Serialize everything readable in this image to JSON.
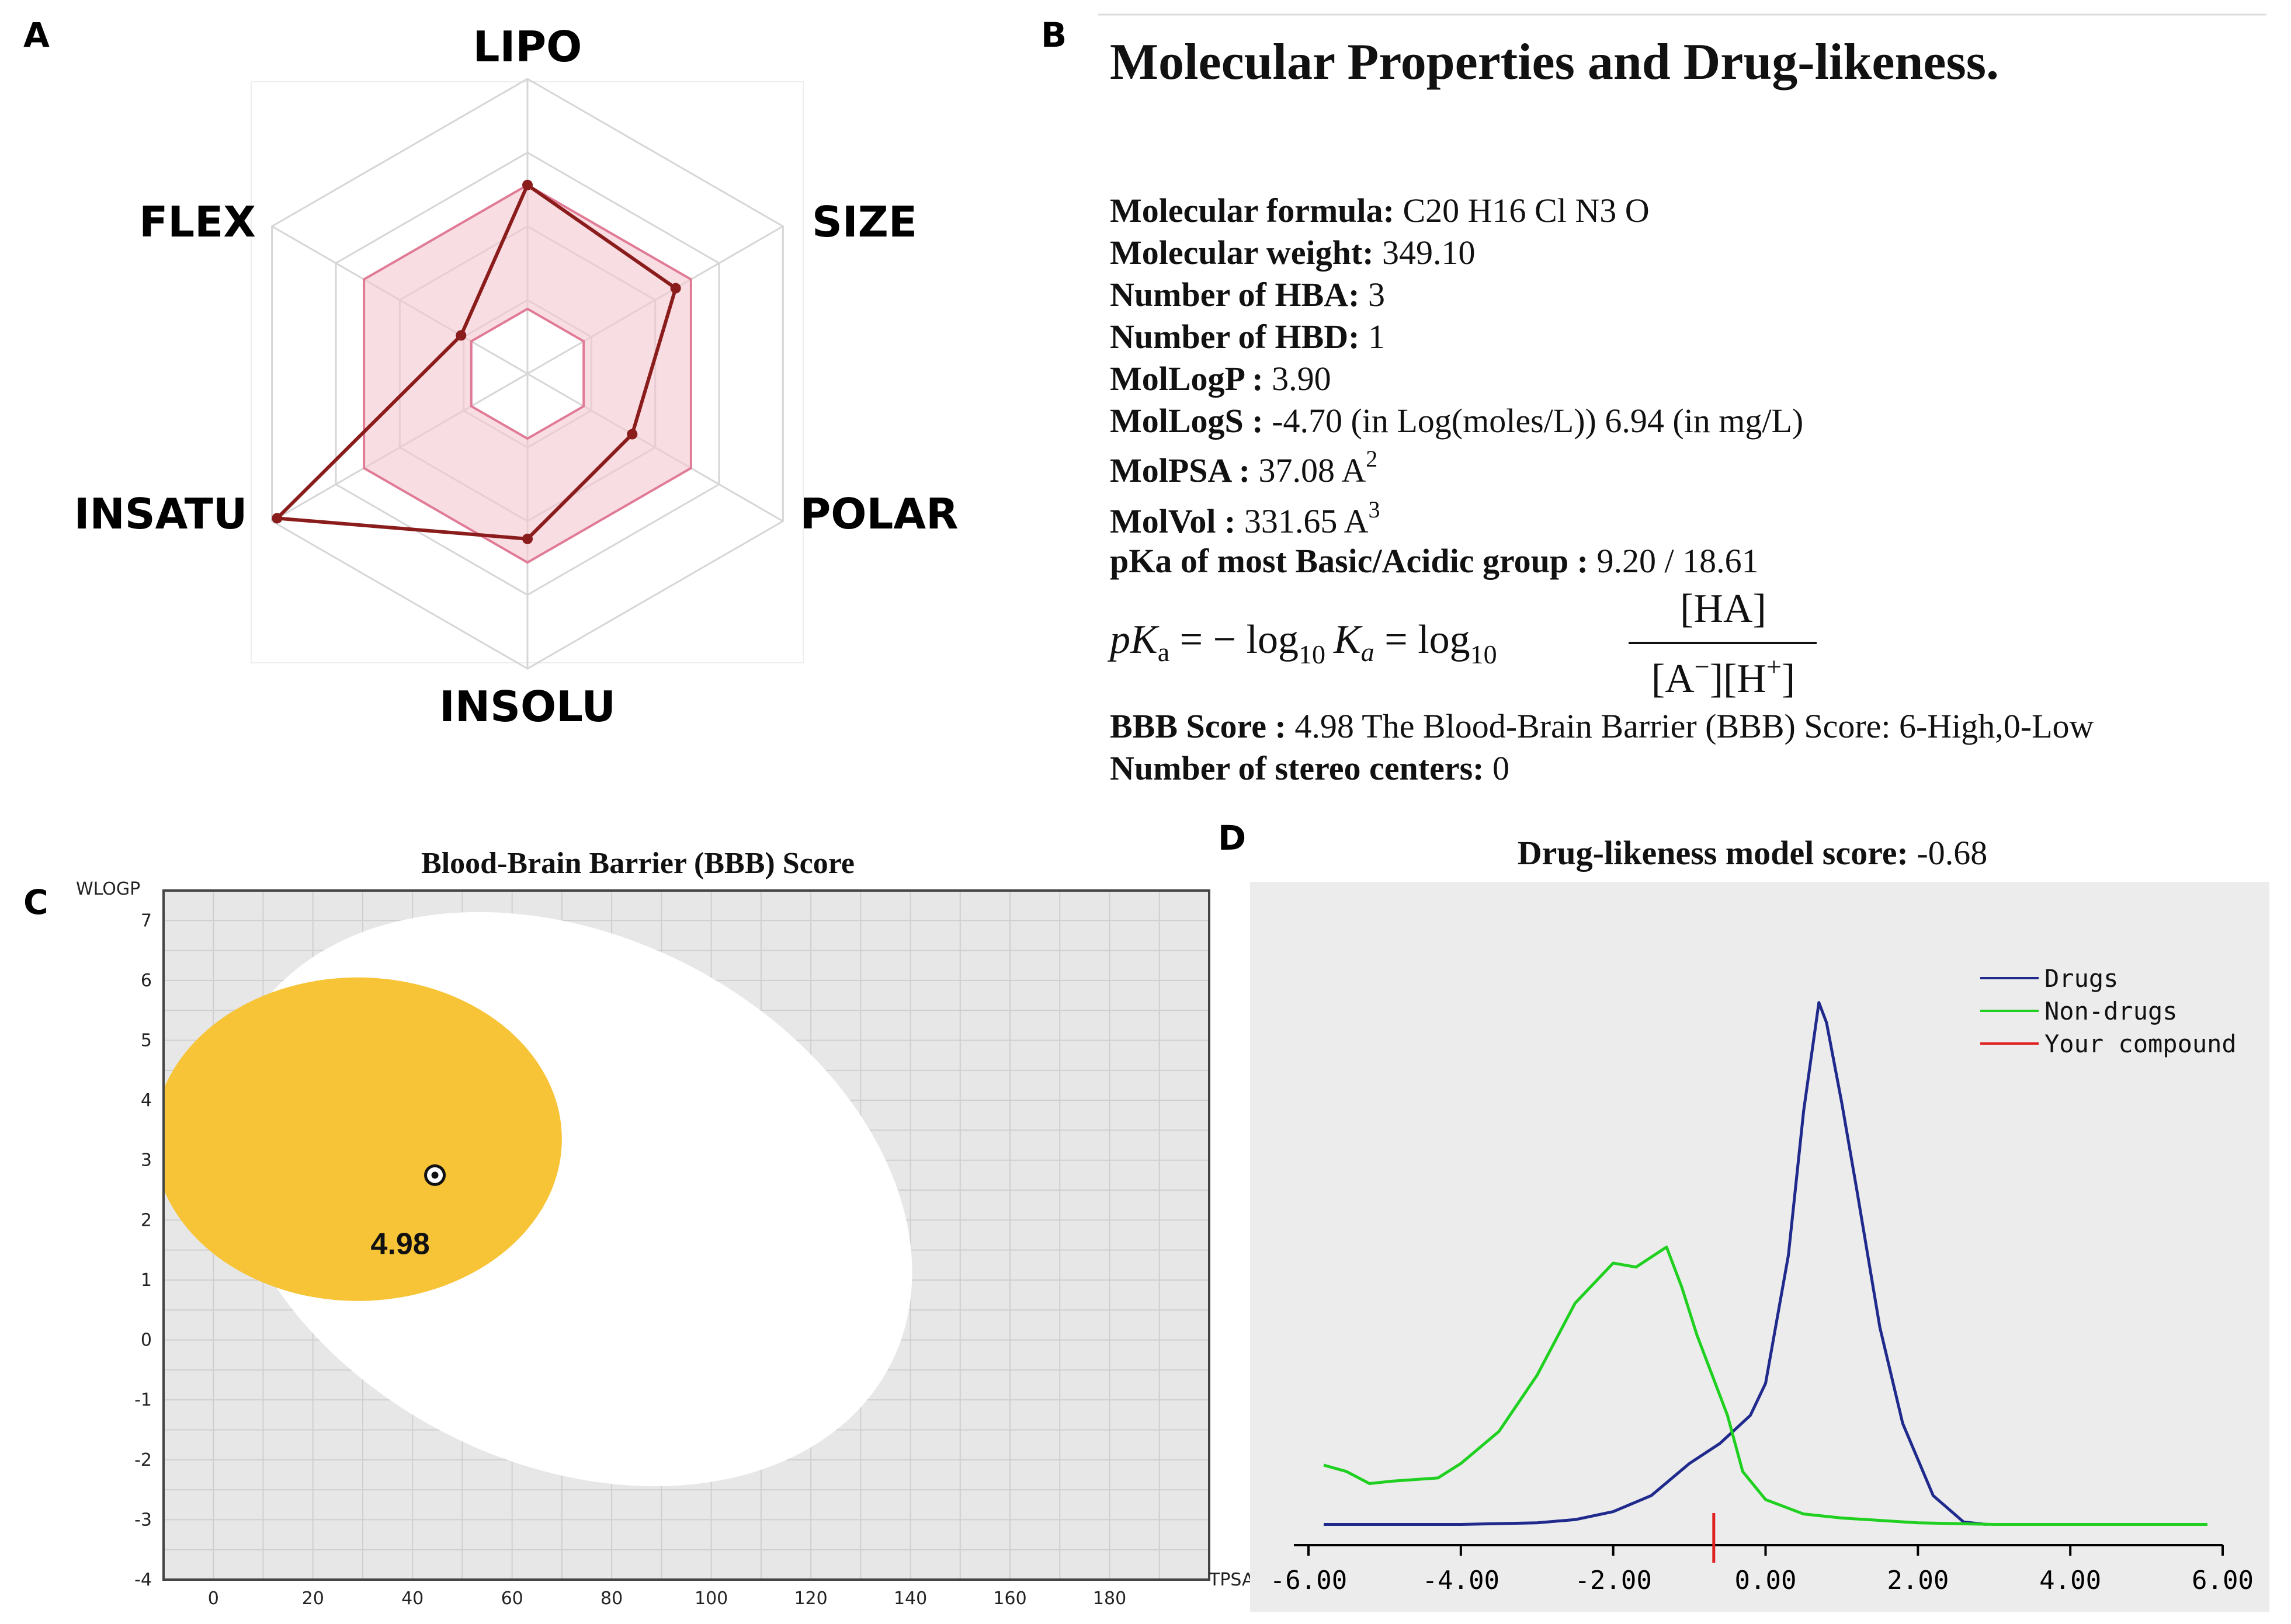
{
  "panels": {
    "a": "A",
    "b": "B",
    "c": "C",
    "d": "D"
  },
  "colors": {
    "radar_line": "#8b1c1c",
    "radar_fill": "#f4c6d0",
    "bbb_yolk": "#f7c437",
    "drugs": "#1f2a8c",
    "non_drugs": "#20d020",
    "compound": "#e02020"
  },
  "radar": {
    "labels": [
      "LIPO",
      "SIZE",
      "POLAR",
      "INSOLU",
      "INSATU",
      "FLEX"
    ],
    "values": [
      0.64,
      0.58,
      0.41,
      0.56,
      0.98,
      0.26
    ],
    "optimal_inner": 0.22,
    "optimal_outer": 0.64,
    "rings": [
      0.25,
      0.5,
      0.75,
      1.0
    ]
  },
  "properties": {
    "title": "Molecular Properties and Drug-likeness.",
    "rows": [
      {
        "key": "Molecular formula:",
        "value": " C20 H16 Cl N3 O"
      },
      {
        "key": "Molecular weight:",
        "value": " 349.10"
      },
      {
        "key": "Number of HBA:",
        "value": " 3"
      },
      {
        "key": "Number of HBD:",
        "value": " 1"
      },
      {
        "key": "MolLogP :",
        "value": " 3.90"
      },
      {
        "key": "MolLogS :",
        "value": " -4.70 (in Log(moles/L)) 6.94 (in mg/L)"
      },
      {
        "key": "MolPSA :",
        "value": " 37.08 A",
        "sup": "2"
      },
      {
        "key": "MolVol :",
        "value": " 331.65 A",
        "sup": "3"
      },
      {
        "key": "pKa of most Basic/Acidic group :",
        "value": " 9.20 / 18.61"
      }
    ],
    "formula": {
      "lhs": "pK",
      "lhs_sub": "a",
      "eq1": " = − log",
      "log_sub": "10",
      "ka": "K",
      "ka_sub": "a",
      "eq2": " = log",
      "numerator": "[HA]",
      "den_a": "[A",
      "den_a_sup": "−",
      "den_mid": "][H",
      "den_h_sup": "+",
      "den_end": "]"
    },
    "rows_after": [
      {
        "key": "BBB Score :",
        "value": " 4.98 The Blood-Brain Barrier (BBB) Score: 6-High,0-Low"
      },
      {
        "key": "Number of stereo centers:",
        "value": " 0"
      }
    ]
  },
  "chart_data": [
    {
      "type": "radar",
      "title": "",
      "axes": [
        "LIPO",
        "SIZE",
        "POLAR",
        "INSOLU",
        "INSATU",
        "FLEX"
      ],
      "values": [
        0.64,
        0.58,
        0.41,
        0.56,
        0.98,
        0.26
      ]
    },
    {
      "type": "scatter",
      "title": "Blood-Brain Barrier (BBB) Score",
      "xlabel": "TPSA",
      "ylabel": "WLOGP",
      "xlim": [
        -10,
        200
      ],
      "ylim": [
        -4,
        7.5
      ],
      "xticks": [
        0,
        20,
        40,
        60,
        80,
        100,
        120,
        140,
        160,
        180
      ],
      "yticks": [
        -4,
        -3,
        -2,
        -1,
        0,
        1,
        2,
        3,
        4,
        5,
        6,
        7
      ],
      "white_ellipse": {
        "center": [
          71,
          2.35
        ],
        "rx": 73,
        "ry": 4.4
      },
      "yolk_ellipse": {
        "center": [
          29,
          3.35
        ],
        "rx": 41,
        "ry": 2.7
      },
      "points": [
        {
          "x": 44.5,
          "y": 2.75,
          "label": "4.98"
        }
      ],
      "annotation": "4.98"
    },
    {
      "type": "line",
      "title": "Drug-likeness model score:",
      "title_value": " -0.68",
      "xlim": [
        -6,
        6
      ],
      "ylim": [
        0,
        7
      ],
      "xticks": [
        "-6.00",
        "-4.00",
        "-2.00",
        "0.00",
        "2.00",
        "4.00",
        "6.00"
      ],
      "xtick_values": [
        -6,
        -4,
        -2,
        0,
        2,
        4,
        6
      ],
      "legend": [
        "Drugs",
        "Non-drugs",
        "Your compound"
      ],
      "compound_score": -0.68,
      "series": [
        {
          "name": "Drugs",
          "x": [
            -5.8,
            -4.0,
            -3.0,
            -2.5,
            -2.0,
            -1.5,
            -1.0,
            -0.6,
            -0.2,
            0.0,
            0.3,
            0.5,
            0.7,
            0.8,
            1.0,
            1.2,
            1.5,
            1.8,
            2.2,
            2.6,
            2.9
          ],
          "y": [
            0.04,
            0.04,
            0.06,
            0.1,
            0.2,
            0.4,
            0.8,
            1.05,
            1.4,
            1.8,
            3.4,
            5.2,
            6.55,
            6.3,
            5.3,
            4.2,
            2.5,
            1.3,
            0.4,
            0.07,
            0.04
          ]
        },
        {
          "name": "Non-drugs",
          "x": [
            -5.8,
            -5.5,
            -5.2,
            -4.9,
            -4.6,
            -4.3,
            -4.0,
            -3.5,
            -3.0,
            -2.5,
            -2.0,
            -1.7,
            -1.3,
            -1.1,
            -0.9,
            -0.7,
            -0.5,
            -0.3,
            0.0,
            0.5,
            1.0,
            2.0,
            3.0,
            4.0,
            5.0,
            5.8
          ],
          "y": [
            0.78,
            0.7,
            0.55,
            0.58,
            0.6,
            0.62,
            0.8,
            1.2,
            1.9,
            2.8,
            3.3,
            3.25,
            3.5,
            3.0,
            2.4,
            1.9,
            1.4,
            0.7,
            0.35,
            0.17,
            0.12,
            0.06,
            0.04,
            0.04,
            0.04,
            0.04
          ]
        }
      ]
    }
  ]
}
